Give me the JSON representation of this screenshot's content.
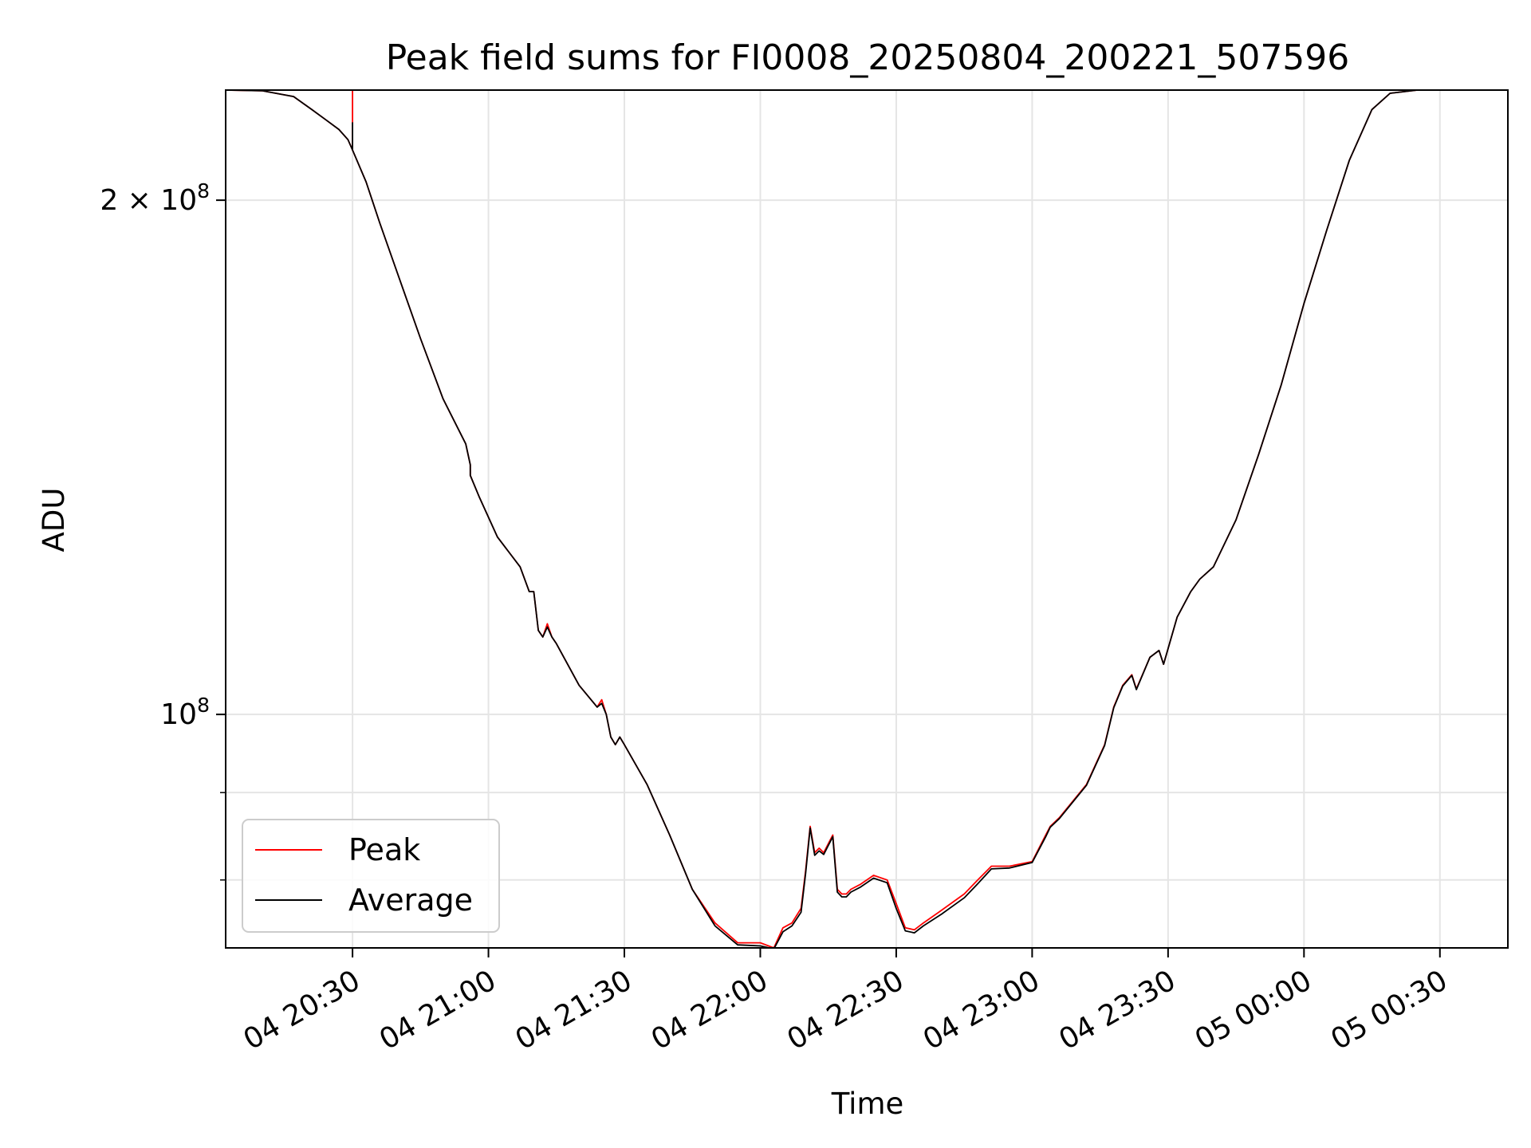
{
  "chart_data": {
    "type": "line",
    "title": "Peak field sums for FI0008_20250804_200221_507596",
    "xlabel": "Time",
    "ylabel": "ADU",
    "y_scale": "log",
    "xlim": [
      "2025-08-04 20:02",
      "2025-08-05 00:45"
    ],
    "ylim": [
      73000000,
      232000000
    ],
    "grid": true,
    "legend_position": "lower-left",
    "x_ticks": [
      {
        "value": "2025-08-04 20:30",
        "label": "04 20:30"
      },
      {
        "value": "2025-08-04 21:00",
        "label": "04 21:00"
      },
      {
        "value": "2025-08-04 21:30",
        "label": "04 21:30"
      },
      {
        "value": "2025-08-04 22:00",
        "label": "04 22:00"
      },
      {
        "value": "2025-08-04 22:30",
        "label": "04 22:30"
      },
      {
        "value": "2025-08-04 23:00",
        "label": "04 23:00"
      },
      {
        "value": "2025-08-04 23:30",
        "label": "04 23:30"
      },
      {
        "value": "2025-08-05 00:00",
        "label": "05 00:00"
      },
      {
        "value": "2025-08-05 00:30",
        "label": "05 00:30"
      }
    ],
    "y_ticks_major": [
      {
        "value": 200000000,
        "label_base": "2 × 10",
        "label_exp": "8"
      },
      {
        "value": 100000000,
        "label_base": "10",
        "label_exp": "8"
      }
    ],
    "y_ticks_minor": [
      80000000,
      90000000
    ],
    "series": [
      {
        "name": "Peak",
        "color": "#ff0000",
        "x": [
          "2025-08-04 20:02",
          "2025-08-04 20:10",
          "2025-08-04 20:17",
          "2025-08-04 20:21",
          "2025-08-04 20:24",
          "2025-08-04 20:27",
          "2025-08-04 20:29",
          "2025-08-04 20:30",
          "2025-08-04 20:30",
          "2025-08-04 20:30",
          "2025-08-04 20:33",
          "2025-08-04 20:36",
          "2025-08-04 20:40",
          "2025-08-04 20:45",
          "2025-08-04 20:50",
          "2025-08-04 20:55",
          "2025-08-04 20:56",
          "2025-08-04 20:56",
          "2025-08-04 20:58",
          "2025-08-04 21:02",
          "2025-08-04 21:07",
          "2025-08-04 21:09",
          "2025-08-04 21:10",
          "2025-08-04 21:11",
          "2025-08-04 21:12",
          "2025-08-04 21:13",
          "2025-08-04 21:14",
          "2025-08-04 21:15",
          "2025-08-04 21:20",
          "2025-08-04 21:24",
          "2025-08-04 21:25",
          "2025-08-04 21:26",
          "2025-08-04 21:27",
          "2025-08-04 21:28",
          "2025-08-04 21:29",
          "2025-08-04 21:30",
          "2025-08-04 21:35",
          "2025-08-04 21:40",
          "2025-08-04 21:45",
          "2025-08-04 21:50",
          "2025-08-04 21:55",
          "2025-08-04 22:00",
          "2025-08-04 22:03",
          "2025-08-04 22:05",
          "2025-08-04 22:07",
          "2025-08-04 22:09",
          "2025-08-04 22:10",
          "2025-08-04 22:11",
          "2025-08-04 22:12",
          "2025-08-04 22:13",
          "2025-08-04 22:14",
          "2025-08-04 22:15",
          "2025-08-04 22:16",
          "2025-08-04 22:17",
          "2025-08-04 22:18",
          "2025-08-04 22:19",
          "2025-08-04 22:20",
          "2025-08-04 22:22",
          "2025-08-04 22:25",
          "2025-08-04 22:28",
          "2025-08-04 22:30",
          "2025-08-04 22:32",
          "2025-08-04 22:34",
          "2025-08-04 22:36",
          "2025-08-04 22:40",
          "2025-08-04 22:45",
          "2025-08-04 22:48",
          "2025-08-04 22:51",
          "2025-08-04 22:55",
          "2025-08-04 23:00",
          "2025-08-04 23:03",
          "2025-08-04 23:04",
          "2025-08-04 23:06",
          "2025-08-04 23:12",
          "2025-08-04 23:16",
          "2025-08-04 23:18",
          "2025-08-04 23:20",
          "2025-08-04 23:22",
          "2025-08-04 23:23",
          "2025-08-04 23:26",
          "2025-08-04 23:28",
          "2025-08-04 23:29",
          "2025-08-04 23:32",
          "2025-08-04 23:35",
          "2025-08-04 23:37",
          "2025-08-04 23:40",
          "2025-08-04 23:45",
          "2025-08-04 23:50",
          "2025-08-04 23:55",
          "2025-08-05 00:00",
          "2025-08-05 00:05",
          "2025-08-05 00:10",
          "2025-08-05 00:15",
          "2025-08-05 00:19",
          "2025-08-05 00:25",
          "2025-08-05 00:30",
          "2025-08-05 00:45"
        ],
        "y": [
          232000000,
          231800000,
          230000000,
          226000000,
          223000000,
          220000000,
          217000000,
          214000000,
          232000000,
          214000000,
          205000000,
          194000000,
          181000000,
          166000000,
          153000000,
          144000000,
          140000000,
          138000000,
          134000000,
          127000000,
          122000000,
          118000000,
          118000000,
          112000000,
          111000000,
          113000000,
          111000000,
          110000000,
          104000000,
          101000000,
          102000000,
          100000000,
          97000000,
          96000000,
          97000000,
          96000000,
          91000000,
          85000000,
          79000000,
          75500000,
          73500000,
          73500000,
          73000000,
          75000000,
          75500000,
          77000000,
          81000000,
          86000000,
          83000000,
          83500000,
          83000000,
          84000000,
          85000000,
          79000000,
          78500000,
          78500000,
          79000000,
          79500000,
          80500000,
          80000000,
          77500000,
          75000000,
          74800000,
          75500000,
          76800000,
          78500000,
          80000000,
          81500000,
          81500000,
          82000000,
          85000000,
          86000000,
          87000000,
          91000000,
          96000000,
          101000000,
          104000000,
          105500000,
          103500000,
          108000000,
          109000000,
          107000000,
          114000000,
          118000000,
          120000000,
          122000000,
          130000000,
          142000000,
          156000000,
          174000000,
          192000000,
          211000000,
          226000000,
          231000000,
          232000000,
          232000000,
          232000000
        ]
      },
      {
        "name": "Average",
        "color": "#000000",
        "x": [
          "2025-08-04 20:02",
          "2025-08-04 20:10",
          "2025-08-04 20:17",
          "2025-08-04 20:21",
          "2025-08-04 20:24",
          "2025-08-04 20:27",
          "2025-08-04 20:29",
          "2025-08-04 20:30",
          "2025-08-04 20:30",
          "2025-08-04 20:30",
          "2025-08-04 20:33",
          "2025-08-04 20:36",
          "2025-08-04 20:40",
          "2025-08-04 20:45",
          "2025-08-04 20:50",
          "2025-08-04 20:55",
          "2025-08-04 20:56",
          "2025-08-04 20:56",
          "2025-08-04 20:58",
          "2025-08-04 21:02",
          "2025-08-04 21:07",
          "2025-08-04 21:09",
          "2025-08-04 21:10",
          "2025-08-04 21:11",
          "2025-08-04 21:12",
          "2025-08-04 21:13",
          "2025-08-04 21:14",
          "2025-08-04 21:15",
          "2025-08-04 21:20",
          "2025-08-04 21:24",
          "2025-08-04 21:25",
          "2025-08-04 21:26",
          "2025-08-04 21:27",
          "2025-08-04 21:28",
          "2025-08-04 21:29",
          "2025-08-04 21:30",
          "2025-08-04 21:35",
          "2025-08-04 21:40",
          "2025-08-04 21:45",
          "2025-08-04 21:50",
          "2025-08-04 21:55",
          "2025-08-04 22:00",
          "2025-08-04 22:03",
          "2025-08-04 22:05",
          "2025-08-04 22:07",
          "2025-08-04 22:09",
          "2025-08-04 22:10",
          "2025-08-04 22:11",
          "2025-08-04 22:12",
          "2025-08-04 22:13",
          "2025-08-04 22:14",
          "2025-08-04 22:15",
          "2025-08-04 22:16",
          "2025-08-04 22:17",
          "2025-08-04 22:18",
          "2025-08-04 22:19",
          "2025-08-04 22:20",
          "2025-08-04 22:22",
          "2025-08-04 22:25",
          "2025-08-04 22:28",
          "2025-08-04 22:30",
          "2025-08-04 22:32",
          "2025-08-04 22:34",
          "2025-08-04 22:36",
          "2025-08-04 22:40",
          "2025-08-04 22:45",
          "2025-08-04 22:48",
          "2025-08-04 22:51",
          "2025-08-04 22:55",
          "2025-08-04 23:00",
          "2025-08-04 23:03",
          "2025-08-04 23:04",
          "2025-08-04 23:06",
          "2025-08-04 23:12",
          "2025-08-04 23:16",
          "2025-08-04 23:18",
          "2025-08-04 23:20",
          "2025-08-04 23:22",
          "2025-08-04 23:23",
          "2025-08-04 23:26",
          "2025-08-04 23:28",
          "2025-08-04 23:29",
          "2025-08-04 23:32",
          "2025-08-04 23:35",
          "2025-08-04 23:37",
          "2025-08-04 23:40",
          "2025-08-04 23:45",
          "2025-08-04 23:50",
          "2025-08-04 23:55",
          "2025-08-05 00:00",
          "2025-08-05 00:05",
          "2025-08-05 00:10",
          "2025-08-05 00:15",
          "2025-08-05 00:19",
          "2025-08-05 00:25",
          "2025-08-05 00:30",
          "2025-08-05 00:45"
        ],
        "y": [
          232000000,
          231800000,
          230000000,
          226000000,
          223000000,
          220000000,
          217000000,
          214000000,
          222000000,
          214000000,
          205000000,
          194000000,
          181000000,
          166000000,
          153000000,
          144000000,
          140000000,
          138000000,
          134000000,
          127000000,
          122000000,
          118000000,
          118000000,
          112000000,
          111000000,
          112500000,
          111000000,
          110000000,
          104000000,
          101000000,
          101500000,
          100000000,
          97000000,
          96000000,
          97000000,
          96000000,
          91000000,
          85000000,
          79000000,
          75200000,
          73300000,
          73200000,
          72900000,
          74600000,
          75200000,
          76600000,
          80700000,
          85800000,
          82700000,
          83200000,
          82800000,
          83800000,
          84800000,
          78700000,
          78200000,
          78200000,
          78700000,
          79200000,
          80200000,
          79700000,
          77000000,
          74700000,
          74500000,
          75200000,
          76400000,
          78100000,
          79600000,
          81200000,
          81300000,
          81900000,
          84800000,
          85900000,
          86900000,
          90900000,
          95900000,
          100900000,
          103900000,
          105400000,
          103400000,
          108000000,
          109000000,
          107000000,
          114000000,
          118000000,
          120000000,
          122000000,
          130000000,
          142000000,
          156000000,
          174000000,
          192000000,
          211000000,
          226000000,
          231000000,
          232000000,
          232000000,
          232000000
        ]
      }
    ]
  }
}
